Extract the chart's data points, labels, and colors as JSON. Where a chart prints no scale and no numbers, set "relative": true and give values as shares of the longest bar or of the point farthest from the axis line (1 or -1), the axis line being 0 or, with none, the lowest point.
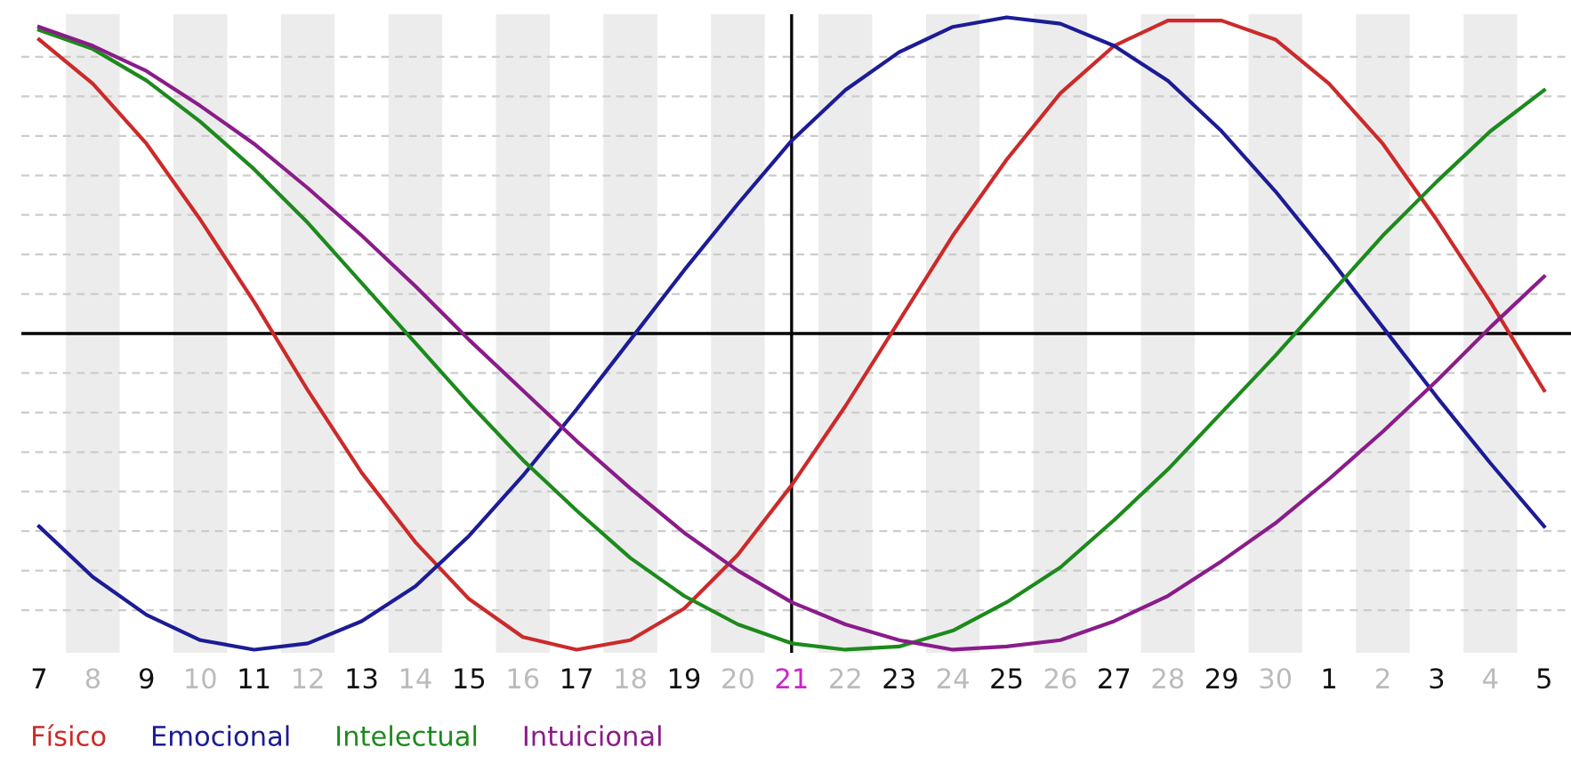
{
  "chart_data": {
    "type": "line",
    "relative": true,
    "categories": [
      "7",
      "8",
      "9",
      "10",
      "11",
      "12",
      "13",
      "14",
      "15",
      "16",
      "17",
      "18",
      "19",
      "20",
      "21",
      "22",
      "23",
      "24",
      "25",
      "26",
      "27",
      "28",
      "29",
      "30",
      "1",
      "2",
      "3",
      "4",
      "5"
    ],
    "series": [
      {
        "name": "Físico",
        "color": "#cc2a2a",
        "values": [
          0.93,
          0.79,
          0.6,
          0.36,
          0.1,
          -0.18,
          -0.44,
          -0.66,
          -0.84,
          -0.96,
          -1.0,
          -0.97,
          -0.87,
          -0.7,
          -0.48,
          -0.23,
          0.04,
          0.31,
          0.55,
          0.76,
          0.91,
          0.99,
          0.99,
          0.93,
          0.79,
          0.6,
          0.36,
          0.1,
          -0.18
        ]
      },
      {
        "name": "Emocional",
        "color": "#1c1c96",
        "values": [
          -0.61,
          -0.77,
          -0.89,
          -0.97,
          -1.0,
          -0.98,
          -0.91,
          -0.8,
          -0.64,
          -0.45,
          -0.24,
          -0.02,
          0.2,
          0.41,
          0.61,
          0.77,
          0.89,
          0.97,
          1.0,
          0.98,
          0.91,
          0.8,
          0.64,
          0.45,
          0.24,
          0.02,
          -0.2,
          -0.41,
          -0.61
        ]
      },
      {
        "name": "Intelectual",
        "color": "#1c8a1c",
        "values": [
          0.96,
          0.9,
          0.8,
          0.67,
          0.52,
          0.35,
          0.16,
          -0.03,
          -0.22,
          -0.4,
          -0.56,
          -0.71,
          -0.83,
          -0.92,
          -0.98,
          -1.0,
          -0.99,
          -0.94,
          -0.85,
          -0.74,
          -0.59,
          -0.43,
          -0.25,
          -0.07,
          0.12,
          0.31,
          0.48,
          0.64,
          0.77
        ]
      },
      {
        "name": "Intuicional",
        "color": "#8a1c8a",
        "values": [
          0.97,
          0.91,
          0.83,
          0.72,
          0.6,
          0.46,
          0.31,
          0.15,
          -0.02,
          -0.18,
          -0.34,
          -0.49,
          -0.63,
          -0.75,
          -0.85,
          -0.92,
          -0.97,
          -1.0,
          -0.99,
          -0.97,
          -0.91,
          -0.83,
          -0.72,
          -0.6,
          -0.46,
          -0.31,
          -0.15,
          0.02,
          0.18
        ]
      }
    ],
    "ref_lines": [
      {
        "axis": "x",
        "value": "21",
        "color": "#000000"
      }
    ],
    "grid": true,
    "legend": "bottom left",
    "marker": "none",
    "line_style": "solid"
  }
}
